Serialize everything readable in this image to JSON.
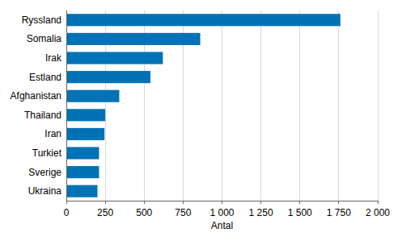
{
  "chart_data": {
    "type": "bar",
    "orientation": "horizontal",
    "categories": [
      "Ryssland",
      "Somalia",
      "Irak",
      "Estland",
      "Afghanistan",
      "Thailand",
      "Iran",
      "Turkiet",
      "Sverige",
      "Ukraina"
    ],
    "values": [
      1760,
      860,
      620,
      540,
      340,
      250,
      245,
      210,
      210,
      200
    ],
    "color": "#0072b5",
    "x_label": "Antal",
    "xlim": [
      0,
      2000
    ],
    "xticks": [
      0,
      250,
      500,
      750,
      {
        "value": 1000,
        "label": "1 000"
      },
      {
        "value": 1250,
        "label": "1 250"
      },
      {
        "value": 1500,
        "label": "1 500"
      },
      {
        "value": 1750,
        "label": "1 750"
      },
      {
        "value": 2000,
        "label": "2 000"
      }
    ],
    "grid": true
  }
}
